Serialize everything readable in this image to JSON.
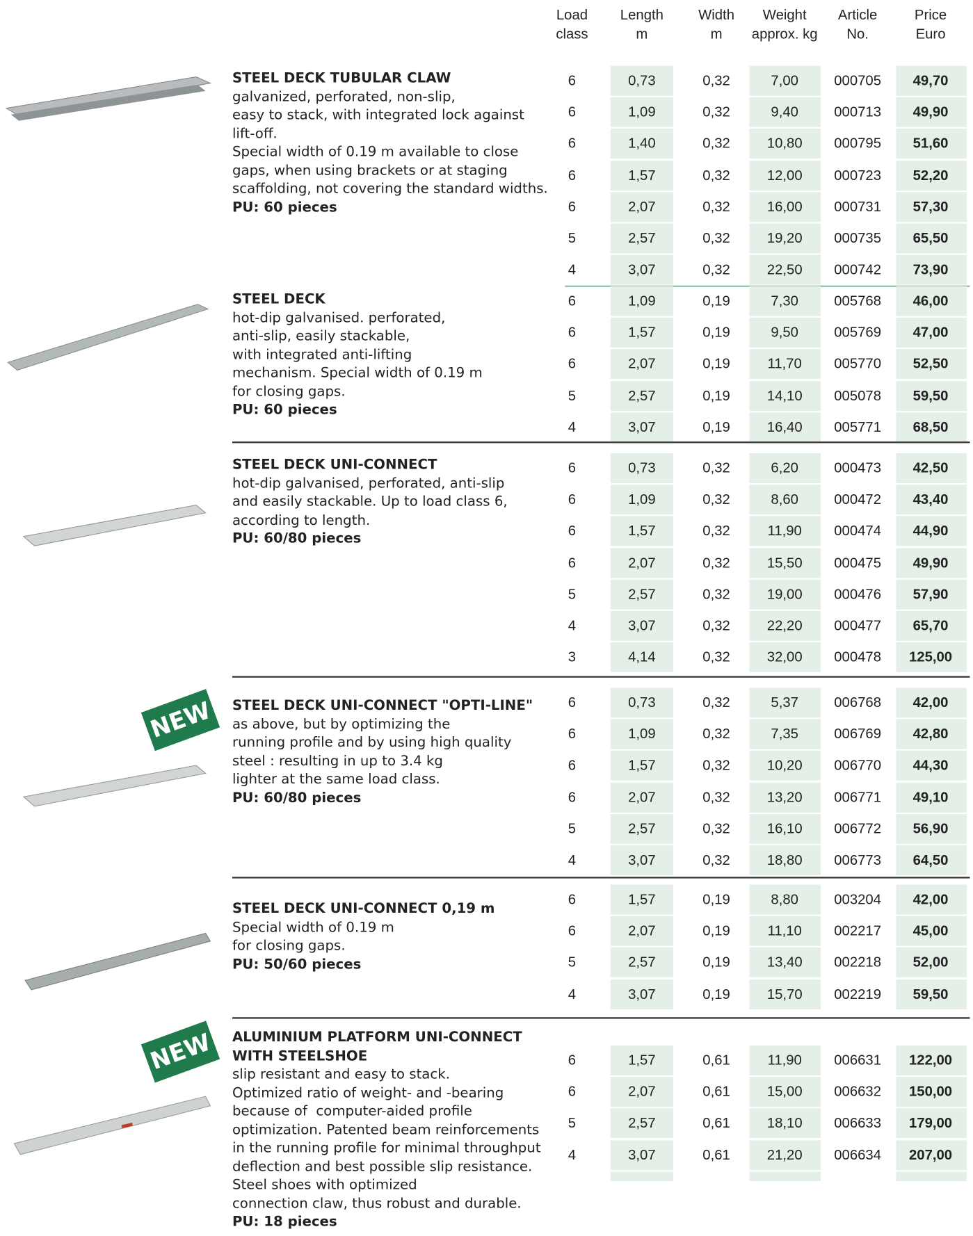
{
  "header": {
    "columns": [
      [
        "Load",
        "class"
      ],
      [
        "Length",
        "m"
      ],
      [
        "Width",
        "m"
      ],
      [
        "Weight",
        "approx. kg"
      ],
      [
        "Article",
        "No."
      ],
      [
        "Price",
        "Euro"
      ]
    ]
  },
  "sections": [
    {
      "title": [
        "STEEL DECK TUBULAR CLAW"
      ],
      "description": [
        "galvanized, perforated, non-slip,",
        "easy to stack, with integrated lock against",
        "lift-off.",
        "Special width of 0.19 m available to close",
        "gaps, when using brackets or at staging",
        "scaffolding, not covering the standard widths."
      ],
      "pu": "PU: 60 pieces",
      "rows": [
        [
          "6",
          "0,73",
          "0,32",
          "7,00",
          "000705",
          "49,70"
        ],
        [
          "6",
          "1,09",
          "0,32",
          "9,40",
          "000713",
          "49,90"
        ],
        [
          "6",
          "1,40",
          "0,32",
          "10,80",
          "000795",
          "51,60"
        ],
        [
          "6",
          "1,57",
          "0,32",
          "12,00",
          "000723",
          "52,20"
        ],
        [
          "6",
          "2,07",
          "0,32",
          "16,00",
          "000731",
          "57,30"
        ],
        [
          "5",
          "2,57",
          "0,32",
          "19,20",
          "000735",
          "65,50"
        ],
        [
          "4",
          "3,07",
          "0,32",
          "22,50",
          "000742",
          "73,90"
        ]
      ]
    },
    {
      "title": [
        "STEEL DECK"
      ],
      "description": [
        "hot-dip galvanised. perforated,",
        "anti-slip, easily stackable,",
        "with integrated anti-lifting",
        "mechanism. Special width of 0.19 m",
        "for closing gaps."
      ],
      "pu": "PU: 60 pieces",
      "rows": [
        [
          "6",
          "1,09",
          "0,19",
          "7,30",
          "005768",
          "46,00"
        ],
        [
          "6",
          "1,57",
          "0,19",
          "9,50",
          "005769",
          "47,00"
        ],
        [
          "6",
          "2,07",
          "0,19",
          "11,70",
          "005770",
          "52,50"
        ],
        [
          "5",
          "2,57",
          "0,19",
          "14,10",
          "005078",
          "59,50"
        ],
        [
          "4",
          "3,07",
          "0,19",
          "16,40",
          "005771",
          "68,50"
        ]
      ]
    },
    {
      "title": [
        "STEEL DECK UNI-CONNECT"
      ],
      "description": [
        "hot-dip galvanised, perforated, anti-slip",
        "and easily stackable. Up to load class 6,",
        "according to length."
      ],
      "pu": "PU: 60/80 pieces",
      "rows": [
        [
          "6",
          "0,73",
          "0,32",
          "6,20",
          "000473",
          "42,50"
        ],
        [
          "6",
          "1,09",
          "0,32",
          "8,60",
          "000472",
          "43,40"
        ],
        [
          "6",
          "1,57",
          "0,32",
          "11,90",
          "000474",
          "44,90"
        ],
        [
          "6",
          "2,07",
          "0,32",
          "15,50",
          "000475",
          "49,90"
        ],
        [
          "5",
          "2,57",
          "0,32",
          "19,00",
          "000476",
          "57,90"
        ],
        [
          "4",
          "3,07",
          "0,32",
          "22,20",
          "000477",
          "65,70"
        ],
        [
          "3",
          "4,14",
          "0,32",
          "32,00",
          "000478",
          "125,00"
        ]
      ]
    },
    {
      "badge": "NEW",
      "title": [
        "STEEL DECK UNI-CONNECT \"OPTI-LINE\""
      ],
      "description": [
        "as above, but by optimizing the",
        "running profile and by using high quality",
        "steel : resulting in up to 3.4 kg",
        "lighter at the same load class."
      ],
      "pu": "PU: 60/80 pieces",
      "rows": [
        [
          "6",
          "0,73",
          "0,32",
          "5,37",
          "006768",
          "42,00"
        ],
        [
          "6",
          "1,09",
          "0,32",
          "7,35",
          "006769",
          "42,80"
        ],
        [
          "6",
          "1,57",
          "0,32",
          "10,20",
          "006770",
          "44,30"
        ],
        [
          "6",
          "2,07",
          "0,32",
          "13,20",
          "006771",
          "49,10"
        ],
        [
          "5",
          "2,57",
          "0,32",
          "16,10",
          "006772",
          "56,90"
        ],
        [
          "4",
          "3,07",
          "0,32",
          "18,80",
          "006773",
          "64,50"
        ]
      ]
    },
    {
      "title": [
        "STEEL DECK UNI-CONNECT 0,19 m"
      ],
      "description": [
        "Special width of 0.19 m",
        "for closing gaps."
      ],
      "pu": "PU: 50/60 pieces",
      "rows": [
        [
          "6",
          "1,57",
          "0,19",
          "8,80",
          "003204",
          "42,00"
        ],
        [
          "6",
          "2,07",
          "0,19",
          "11,10",
          "002217",
          "45,00"
        ],
        [
          "5",
          "2,57",
          "0,19",
          "13,40",
          "002218",
          "52,00"
        ],
        [
          "4",
          "3,07",
          "0,19",
          "15,70",
          "002219",
          "59,50"
        ]
      ]
    },
    {
      "badge": "NEW",
      "title": [
        "ALUMINIUM PLATFORM UNI-CONNECT",
        "WITH STEELSHOE"
      ],
      "description": [
        "slip resistant and easy to stack.",
        "Optimized ratio of weight- and -bearing",
        "because of  computer-aided profile",
        "optimization. Patented beam reinforcements",
        "in the running profile for minimal throughput",
        "deflection and best possible slip resistance.",
        "Steel shoes with optimized",
        "connection claw, thus robust and durable."
      ],
      "pu": "PU: 18 pieces",
      "rows": [
        [
          "6",
          "1,57",
          "0,61",
          "11,90",
          "006631",
          "122,00"
        ],
        [
          "6",
          "2,07",
          "0,61",
          "15,00",
          "006632",
          "150,00"
        ],
        [
          "5",
          "2,57",
          "0,61",
          "18,10",
          "006633",
          "179,00"
        ],
        [
          "4",
          "3,07",
          "0,61",
          "21,20",
          "006634",
          "207,00"
        ]
      ]
    }
  ]
}
